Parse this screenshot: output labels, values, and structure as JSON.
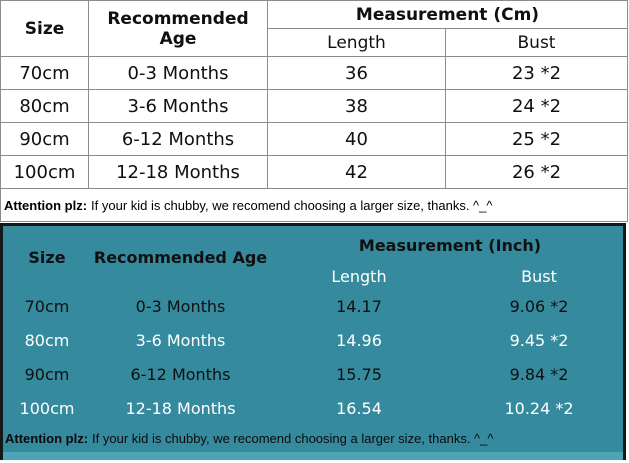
{
  "colors": {
    "teal_bg": "#368a9e",
    "teal_bottom_strip": "#4da4b6",
    "grid_line": "#8c8c8c",
    "dark_border": "#14181a",
    "text_black": "#101010",
    "text_white": "#ffffff"
  },
  "cm_table": {
    "headers": {
      "size": "Size",
      "age": "Recommended Age",
      "group": "Measurement (Cm)",
      "length": "Length",
      "bust": "Bust"
    },
    "rows": [
      {
        "size": "70cm",
        "age": "0-3 Months",
        "length": "36",
        "bust": "23 *2"
      },
      {
        "size": "80cm",
        "age": "3-6 Months",
        "length": "38",
        "bust": "24 *2"
      },
      {
        "size": "90cm",
        "age": "6-12 Months",
        "length": "40",
        "bust": "25 *2"
      },
      {
        "size": "100cm",
        "age": "12-18 Months",
        "length": "42",
        "bust": "26 *2"
      }
    ],
    "attention": {
      "bold": "Attention plz:",
      "text": "If your kid is chubby, we recomend choosing a larger size, thanks. ^_^"
    }
  },
  "inch_table": {
    "headers": {
      "size": "Size",
      "age": "Recommended Age",
      "group": "Measurement (Inch)",
      "length": "Length",
      "bust": "Bust"
    },
    "rows": [
      {
        "size": "70cm",
        "age": "0-3 Months",
        "length": "14.17",
        "bust": "9.06 *2"
      },
      {
        "size": "80cm",
        "age": "3-6 Months",
        "length": "14.96",
        "bust": "9.45 *2"
      },
      {
        "size": "90cm",
        "age": "6-12 Months",
        "length": "15.75",
        "bust": "9.84 *2"
      },
      {
        "size": "100cm",
        "age": "12-18 Months",
        "length": "16.54",
        "bust": "10.24 *2"
      }
    ],
    "attention": {
      "bold": "Attention plz:",
      "text": "If your kid is chubby, we recomend choosing a larger size, thanks. ^_^"
    }
  },
  "chart_data": [
    {
      "type": "table",
      "title": "Measurement (Cm)",
      "columns": [
        "Size",
        "Recommended Age",
        "Length",
        "Bust"
      ],
      "rows": [
        [
          "70cm",
          "0-3 Months",
          "36",
          "23 *2"
        ],
        [
          "80cm",
          "3-6 Months",
          "38",
          "24 *2"
        ],
        [
          "90cm",
          "6-12 Months",
          "40",
          "25 *2"
        ],
        [
          "100cm",
          "12-18 Months",
          "42",
          "26 *2"
        ]
      ],
      "note": "Attention plz: If your kid is chubby, we recomend choosing a larger size, thanks. ^_^"
    },
    {
      "type": "table",
      "title": "Measurement (Inch)",
      "columns": [
        "Size",
        "Recommended Age",
        "Length",
        "Bust"
      ],
      "rows": [
        [
          "70cm",
          "0-3 Months",
          "14.17",
          "9.06 *2"
        ],
        [
          "80cm",
          "3-6 Months",
          "14.96",
          "9.45 *2"
        ],
        [
          "90cm",
          "6-12 Months",
          "15.75",
          "9.84 *2"
        ],
        [
          "100cm",
          "12-18 Months",
          "16.54",
          "10.24 *2"
        ]
      ],
      "note": "Attention plz: If your kid is chubby, we recomend choosing a larger size, thanks. ^_^"
    }
  ]
}
